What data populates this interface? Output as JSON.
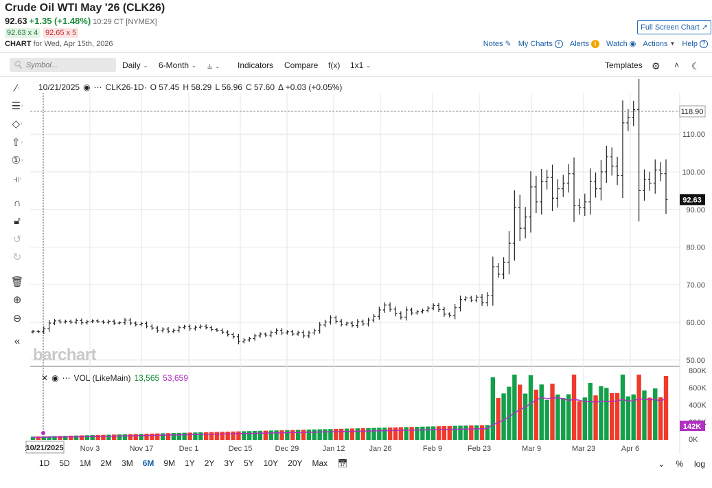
{
  "header": {
    "title": "Crude Oil WTI May '26 (CLK26)",
    "last": "92.63",
    "change": "+1.35 (+1.48%)",
    "time": "10:29 CT [NYMEX]",
    "bid": "92.63 x 4",
    "ask": "92.65 x 5",
    "chart_label": "CHART",
    "chart_date": "for Wed, Apr 15th, 2026",
    "fullscreen": "Full Screen Chart",
    "notes": "Notes",
    "my_charts": "My Charts",
    "alerts": "Alerts",
    "watch": "Watch",
    "actions": "Actions",
    "help": "Help"
  },
  "toolbar": {
    "search_placeholder": "Symbol...",
    "interval": "Daily",
    "range": "6-Month",
    "indicators": "Indicators",
    "compare": "Compare",
    "fx": "f(x)",
    "layout": "1x1",
    "templates": "Templates"
  },
  "legend": {
    "date": "10/21/2025",
    "symbol": "CLK26",
    "interval": "·1D·",
    "open_label": "O",
    "open": "57.45",
    "high_label": "H",
    "high": "58.29",
    "low_label": "L",
    "low": "56.96",
    "close_label": "C",
    "close": "57.60",
    "delta": "Δ +0.03 (+0.05%)",
    "vol_label": "VOL (LikeMain)",
    "vol_value": "13,565",
    "vol_avg": "53,659"
  },
  "watermark": "barchart",
  "periods": [
    "1D",
    "5D",
    "1M",
    "2M",
    "3M",
    "6M",
    "9M",
    "1Y",
    "2Y",
    "3Y",
    "5Y",
    "10Y",
    "20Y",
    "Max"
  ],
  "active_period": "6M",
  "bottom_right": {
    "percent": "%",
    "log": "log"
  },
  "colors": {
    "up": "#13a04a",
    "down": "#ef3b2c",
    "avg": "#b12fc2",
    "accent": "#1b5ea8"
  },
  "chart_data": [
    {
      "type": "ohlc",
      "x_labels": [
        "10/21/2025",
        "Nov 3",
        "Nov 17",
        "Dec 1",
        "Dec 15",
        "Dec 29",
        "Jan 12",
        "Jan 26",
        "Feb 9",
        "Feb 23",
        "Mar 9",
        "Mar 23",
        "Apr 6"
      ],
      "y_ticks": [
        50,
        60,
        70,
        80,
        90,
        100,
        110
      ],
      "ylim": [
        48.5,
        121
      ],
      "last_price_label": "92.63",
      "high_label": "118.90",
      "close": [
        57.6,
        57.5,
        58.3,
        59.8,
        60.4,
        60.1,
        60.3,
        60.0,
        60.5,
        59.9,
        60.2,
        60.4,
        60.2,
        60.0,
        60.3,
        59.8,
        59.9,
        60.6,
        59.8,
        59.4,
        59.7,
        59.0,
        58.5,
        57.8,
        58.2,
        57.6,
        57.9,
        58.6,
        58.9,
        58.3,
        58.7,
        59.0,
        58.6,
        58.1,
        57.9,
        57.4,
        56.8,
        56.2,
        54.9,
        55.3,
        55.7,
        56.4,
        56.9,
        56.6,
        57.3,
        57.9,
        57.2,
        57.5,
        56.9,
        57.3,
        56.4,
        57.2,
        57.8,
        59.3,
        60.1,
        61.2,
        60.3,
        59.5,
        59.8,
        59.2,
        60.2,
        59.6,
        60.6,
        61.6,
        63.3,
        64.6,
        63.5,
        62.3,
        61.4,
        63.3,
        62.5,
        62.8,
        63.2,
        63.8,
        64.5,
        63.4,
        62.2,
        61.8,
        63.9,
        66.1,
        66.5,
        65.9,
        66.7,
        65.2,
        67.1,
        74.8,
        72.8,
        76.0,
        81.0,
        90.5,
        85.0,
        88.0,
        96.0,
        92.0,
        97.4,
        98.5,
        93.0,
        95.5,
        97.0,
        99.5,
        91.0,
        90.5,
        92.0,
        97.5,
        95.5,
        100.0,
        104.0,
        101.5,
        99.0,
        113.0,
        114.5,
        116.5,
        95.0,
        98.0,
        97.0,
        100.5,
        99.5,
        92.63
      ],
      "volume_label": "142K",
      "volume_ticks": [
        "0K",
        "200K",
        "400K",
        "600K",
        "800K"
      ]
    }
  ]
}
